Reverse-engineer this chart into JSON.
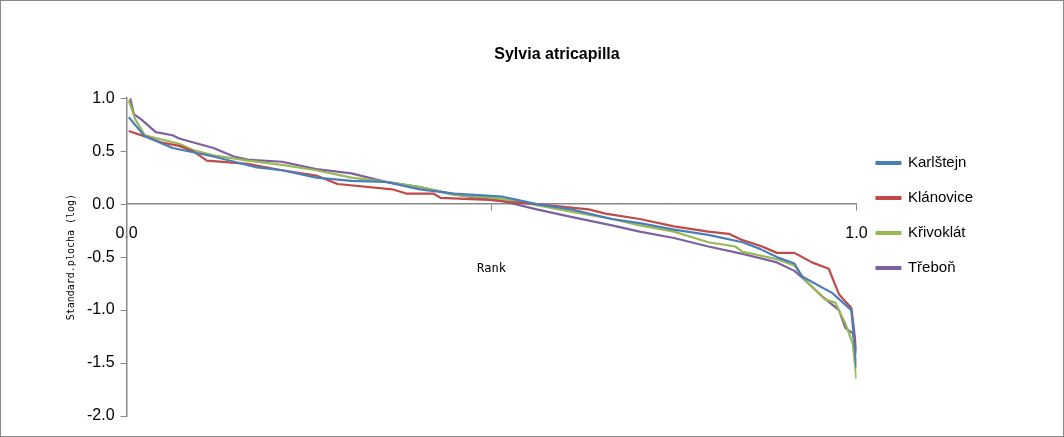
{
  "chart_data": {
    "type": "line",
    "title": "Sylvia atricapilla",
    "xlabel": "Rank",
    "ylabel": "Standard.plocha (log)",
    "xlim": [
      0,
      1
    ],
    "xticks": [
      {
        "value": 0,
        "label": "0.0"
      },
      {
        "value": 0.5,
        "label": null
      },
      {
        "value": 1,
        "label": "1.0"
      }
    ],
    "ylim": [
      -2,
      1
    ],
    "yticks": [
      {
        "value": -2,
        "label": "-2.0"
      },
      {
        "value": -1.5,
        "label": "-1.5"
      },
      {
        "value": -1,
        "label": "-1.0"
      },
      {
        "value": -0.5,
        "label": "-0.5"
      },
      {
        "value": 0,
        "label": "0.0"
      },
      {
        "value": 0.5,
        "label": "0.5"
      },
      {
        "value": 1,
        "label": "1.0"
      }
    ],
    "grid": false,
    "legend": "right",
    "marker": "none",
    "line_style": "solid",
    "series": [
      {
        "name": "Karlštejn",
        "color": "#4a7ebb",
        "x": [
          0.003,
          0.025,
          0.063,
          0.091,
          0.119,
          0.176,
          0.213,
          0.26,
          0.308,
          0.355,
          0.402,
          0.449,
          0.515,
          0.562,
          0.609,
          0.665,
          0.703,
          0.75,
          0.797,
          0.844,
          0.867,
          0.891,
          0.915,
          0.925,
          0.967,
          0.993,
          1.0
        ],
        "values": [
          0.82,
          0.64,
          0.53,
          0.49,
          0.45,
          0.35,
          0.32,
          0.25,
          0.22,
          0.21,
          0.14,
          0.1,
          0.07,
          0.0,
          -0.05,
          -0.14,
          -0.18,
          -0.24,
          -0.29,
          -0.36,
          -0.42,
          -0.5,
          -0.56,
          -0.68,
          -0.84,
          -1.0,
          -1.54
        ]
      },
      {
        "name": "Klánovice",
        "color": "#be4b48",
        "x": [
          0.003,
          0.025,
          0.049,
          0.072,
          0.091,
          0.11,
          0.166,
          0.213,
          0.26,
          0.289,
          0.364,
          0.383,
          0.42,
          0.43,
          0.496,
          0.524,
          0.562,
          0.633,
          0.656,
          0.703,
          0.75,
          0.797,
          0.825,
          0.844,
          0.867,
          0.891,
          0.915,
          0.939,
          0.962,
          0.976,
          0.993,
          1.0
        ],
        "values": [
          0.69,
          0.64,
          0.58,
          0.55,
          0.5,
          0.41,
          0.38,
          0.32,
          0.27,
          0.19,
          0.14,
          0.1,
          0.1,
          0.06,
          0.04,
          0.02,
          0.0,
          -0.05,
          -0.09,
          -0.14,
          -0.21,
          -0.26,
          -0.28,
          -0.34,
          -0.39,
          -0.46,
          -0.46,
          -0.55,
          -0.61,
          -0.85,
          -0.98,
          -1.38
        ]
      },
      {
        "name": "Křivoklát",
        "color": "#98b954",
        "x": [
          0.003,
          0.012,
          0.025,
          0.072,
          0.091,
          0.119,
          0.166,
          0.213,
          0.26,
          0.308,
          0.355,
          0.402,
          0.449,
          0.515,
          0.562,
          0.609,
          0.665,
          0.703,
          0.75,
          0.797,
          0.834,
          0.844,
          0.891,
          0.915,
          0.929,
          0.957,
          0.971,
          0.985,
          0.995,
          1.0
        ],
        "values": [
          0.98,
          0.8,
          0.65,
          0.57,
          0.51,
          0.46,
          0.41,
          0.37,
          0.32,
          0.25,
          0.21,
          0.16,
          0.09,
          0.05,
          -0.01,
          -0.07,
          -0.14,
          -0.2,
          -0.26,
          -0.36,
          -0.4,
          -0.45,
          -0.52,
          -0.58,
          -0.71,
          -0.9,
          -0.93,
          -1.13,
          -1.32,
          -1.65
        ]
      },
      {
        "name": "Třeboň",
        "color": "#7d60a0",
        "x": [
          0.005,
          0.01,
          0.02,
          0.04,
          0.063,
          0.072,
          0.119,
          0.147,
          0.166,
          0.213,
          0.26,
          0.308,
          0.355,
          0.402,
          0.449,
          0.515,
          0.562,
          0.609,
          0.665,
          0.703,
          0.75,
          0.797,
          0.844,
          0.891,
          0.915,
          0.925,
          0.953,
          0.976,
          0.985,
          0.995,
          1.0
        ],
        "values": [
          1.0,
          0.85,
          0.8,
          0.68,
          0.65,
          0.62,
          0.53,
          0.45,
          0.42,
          0.4,
          0.33,
          0.29,
          0.21,
          0.16,
          0.09,
          0.03,
          -0.05,
          -0.12,
          -0.2,
          -0.26,
          -0.32,
          -0.4,
          -0.47,
          -0.55,
          -0.63,
          -0.69,
          -0.87,
          -1.0,
          -1.17,
          -1.22,
          -1.41
        ]
      }
    ]
  }
}
